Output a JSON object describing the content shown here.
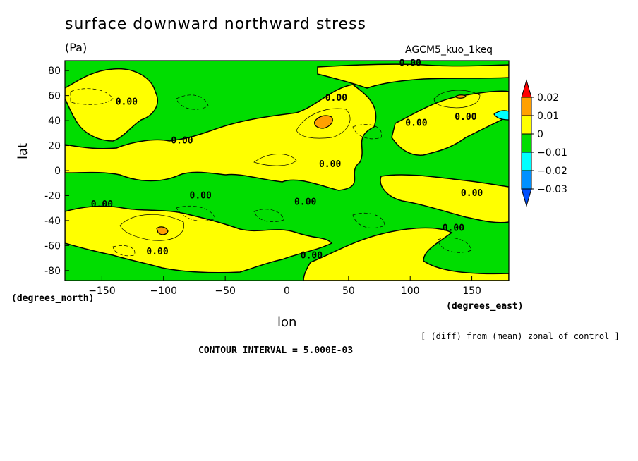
{
  "chart_data": {
    "type": "heatmap",
    "title": "surface downward northward stress",
    "units": "(Pa)",
    "source": "AGCM5_kuo_1keq",
    "xlabel": "lon",
    "ylabel": "lat",
    "x_units": "(degrees_east)",
    "y_units": "(degrees_north)",
    "x_ticks": [
      -150,
      -100,
      -50,
      0,
      50,
      100,
      150
    ],
    "y_ticks": [
      80,
      60,
      40,
      20,
      0,
      -20,
      -40,
      -60,
      -80
    ],
    "xlim": [
      -180,
      180
    ],
    "ylim": [
      -88,
      88
    ],
    "note": "[ (diff) from (mean) zonal of control ]",
    "contour_interval": "CONTOUR INTERVAL = 5.000E-03",
    "legend": {
      "labels": [
        "0.02",
        "0.01",
        "0",
        "-0.01",
        "-0.02",
        "-0.03"
      ],
      "colors": [
        "#ff0000",
        "#ffa000",
        "#ffff00",
        "#00dd00",
        "#00ffff",
        "#0090ff",
        "#0050ff"
      ]
    },
    "contour_labels": [
      {
        "text": "0.00",
        "lon": 100,
        "lat": 86
      },
      {
        "text": "0.00",
        "lon": -130,
        "lat": 55
      },
      {
        "text": "0.00",
        "lon": 40,
        "lat": 58
      },
      {
        "text": "0.00",
        "lon": 105,
        "lat": 38
      },
      {
        "text": "0.00",
        "lon": 145,
        "lat": 43
      },
      {
        "text": "0.00",
        "lon": -85,
        "lat": 24
      },
      {
        "text": "0.00",
        "lon": 35,
        "lat": 5
      },
      {
        "text": "0.00",
        "lon": -70,
        "lat": -20
      },
      {
        "text": "0.00",
        "lon": 15,
        "lat": -25
      },
      {
        "text": "0.00",
        "lon": 150,
        "lat": -18
      },
      {
        "text": "0.00",
        "lon": -150,
        "lat": -27
      },
      {
        "text": "0.00",
        "lon": 135,
        "lat": -46
      },
      {
        "text": "0.00",
        "lon": -105,
        "lat": -65
      },
      {
        "text": "0.00",
        "lon": 20,
        "lat": -68
      }
    ]
  }
}
